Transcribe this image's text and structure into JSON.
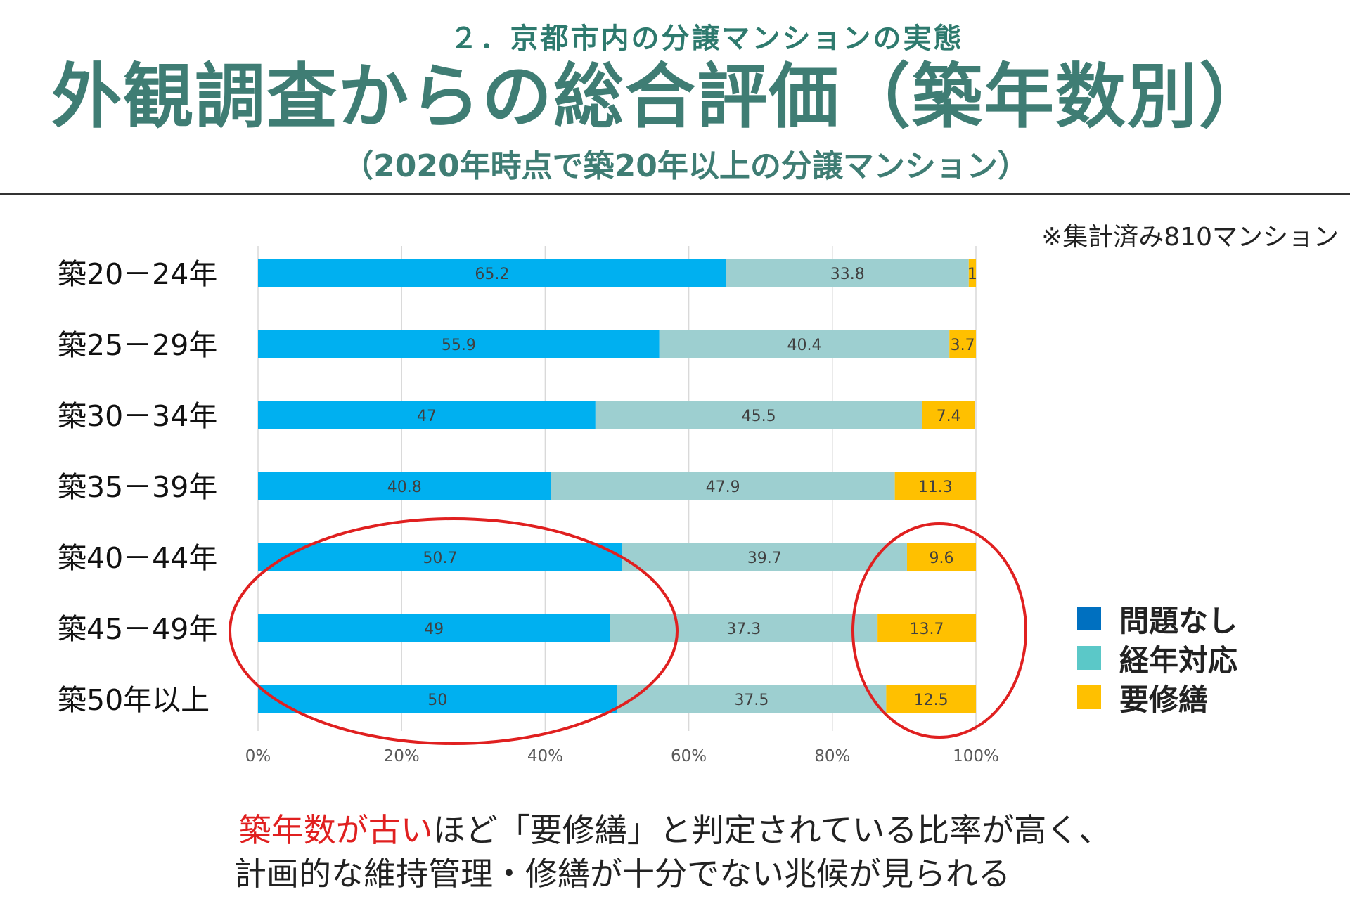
{
  "header": {
    "subtitle": "２．京都市内の分譲マンションの実態",
    "title": "外観調査からの総合評価（築年数別）",
    "condition": "（2020年時点で築20年以上の分譲マンション）",
    "note": "※集計済み810マンション"
  },
  "colors": {
    "heading": "#3f7d74",
    "no_problem": "#00b0f0",
    "aging": "#9dcfd0",
    "repair": "#ffc000",
    "legend_no_problem": "#0070c0",
    "legend_aging": "#5bc8c8",
    "circle": "#e02020"
  },
  "chart_data": {
    "type": "bar",
    "orientation": "horizontal",
    "stacked": "percent",
    "categories": [
      "築20－24年",
      "築25－29年",
      "築30－34年",
      "築35－39年",
      "築40－44年",
      "築45－49年",
      "築50年以上"
    ],
    "series": [
      {
        "name": "問題なし",
        "values": [
          65.2,
          55.9,
          47,
          40.8,
          50.7,
          49,
          50
        ]
      },
      {
        "name": "経年対応",
        "values": [
          33.8,
          40.4,
          45.5,
          47.9,
          39.7,
          37.3,
          37.5
        ]
      },
      {
        "name": "要修繕",
        "values": [
          1,
          3.7,
          7.4,
          11.3,
          9.6,
          13.7,
          12.5
        ]
      }
    ],
    "data_labels": [
      [
        "65.2",
        "55.9",
        "47",
        "40.8",
        "50.7",
        "49",
        "50"
      ],
      [
        "33.8",
        "40.4",
        "45.5",
        "47.9",
        "39.7",
        "37.3",
        "37.5"
      ],
      [
        "1",
        "3.7",
        "7.4",
        "11.3",
        "9.6",
        "13.7",
        "12.5"
      ]
    ],
    "xlim": [
      0,
      100
    ],
    "xticks": [
      "0%",
      "20%",
      "40%",
      "60%",
      "80%",
      "100%"
    ],
    "grid": "vertical",
    "legend_position": "right"
  },
  "legend": {
    "items": [
      {
        "label": "問題なし"
      },
      {
        "label": "経年対応"
      },
      {
        "label": "要修繕"
      }
    ]
  },
  "conclusion": {
    "highlight": "築年数が古い",
    "rest1": "ほど「要修繕」と判定されている比率が高く、",
    "line2": "計画的な維持管理・修繕が十分でない兆候が見られる"
  }
}
